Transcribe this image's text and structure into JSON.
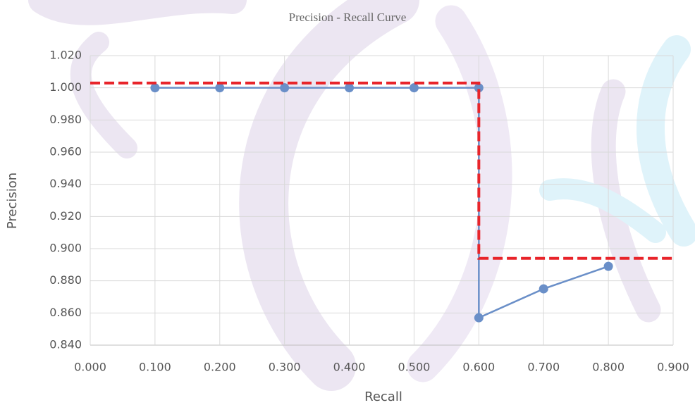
{
  "chart_data": {
    "type": "line",
    "title": "Precision - Recall Curve",
    "x_label": "Recall",
    "y_label": "Precision",
    "xlim": [
      0,
      0.9
    ],
    "ylim": [
      0.84,
      1.02
    ],
    "xticks": [
      {
        "value": 0,
        "label": "0.000"
      },
      {
        "value": 0.1,
        "label": "0.100"
      },
      {
        "value": 0.2,
        "label": "0.200"
      },
      {
        "value": 0.3,
        "label": "0.300"
      },
      {
        "value": 0.4,
        "label": "0.400"
      },
      {
        "value": 0.5,
        "label": "0.500"
      },
      {
        "value": 0.6,
        "label": "0.600"
      },
      {
        "value": 0.7,
        "label": "0.700"
      },
      {
        "value": 0.8,
        "label": "0.800"
      },
      {
        "value": 0.9,
        "label": "0.900"
      }
    ],
    "yticks": [
      {
        "value": 0.84,
        "label": "0.840"
      },
      {
        "value": 0.86,
        "label": "0.860"
      },
      {
        "value": 0.88,
        "label": "0.880"
      },
      {
        "value": 0.9,
        "label": "0.900"
      },
      {
        "value": 0.92,
        "label": "0.920"
      },
      {
        "value": 0.94,
        "label": "0.940"
      },
      {
        "value": 0.96,
        "label": "0.960"
      },
      {
        "value": 0.98,
        "label": "0.980"
      },
      {
        "value": 1,
        "label": "1.000"
      },
      {
        "value": 1.02,
        "label": "1.020"
      }
    ],
    "grid": true,
    "series": [
      {
        "color": "#6a8fc8",
        "marker": true,
        "dashed": false,
        "x": [
          0.1,
          0.2,
          0.3,
          0.4,
          0.5,
          0.6,
          0.6,
          0.7,
          0.8
        ],
        "values": [
          1,
          1,
          1,
          1,
          1,
          1,
          0.857,
          0.875,
          0.889
        ]
      },
      {
        "color": "#e8242a",
        "marker": false,
        "dashed": true,
        "x": [
          0,
          0.6,
          0.6,
          0.9
        ],
        "values": [
          1.003,
          1.003,
          0.894,
          0.894
        ]
      }
    ]
  }
}
